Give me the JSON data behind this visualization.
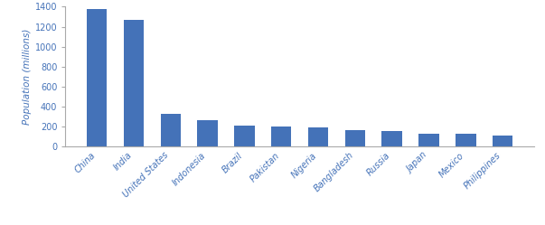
{
  "categories": [
    "China",
    "India",
    "United States",
    "Indonesia",
    "Brazil",
    "Pakistan",
    "Nigeria",
    "Bangladesh",
    "Russia",
    "Japan",
    "Mexico",
    "Philippines"
  ],
  "values": [
    1380,
    1270,
    325,
    260,
    210,
    200,
    190,
    163,
    150,
    130,
    127,
    105
  ],
  "bar_color": "#4472b8",
  "ylabel": "Population (millions)",
  "ylim": [
    0,
    1400
  ],
  "yticks": [
    0,
    200,
    400,
    600,
    800,
    1000,
    1200,
    1400
  ],
  "background_color": "#ffffff",
  "tick_label_color": "#4472b8",
  "tick_label_fontsize": 7.0,
  "ylabel_fontsize": 7.5,
  "ylabel_color": "#4472b8",
  "bar_width": 0.55
}
